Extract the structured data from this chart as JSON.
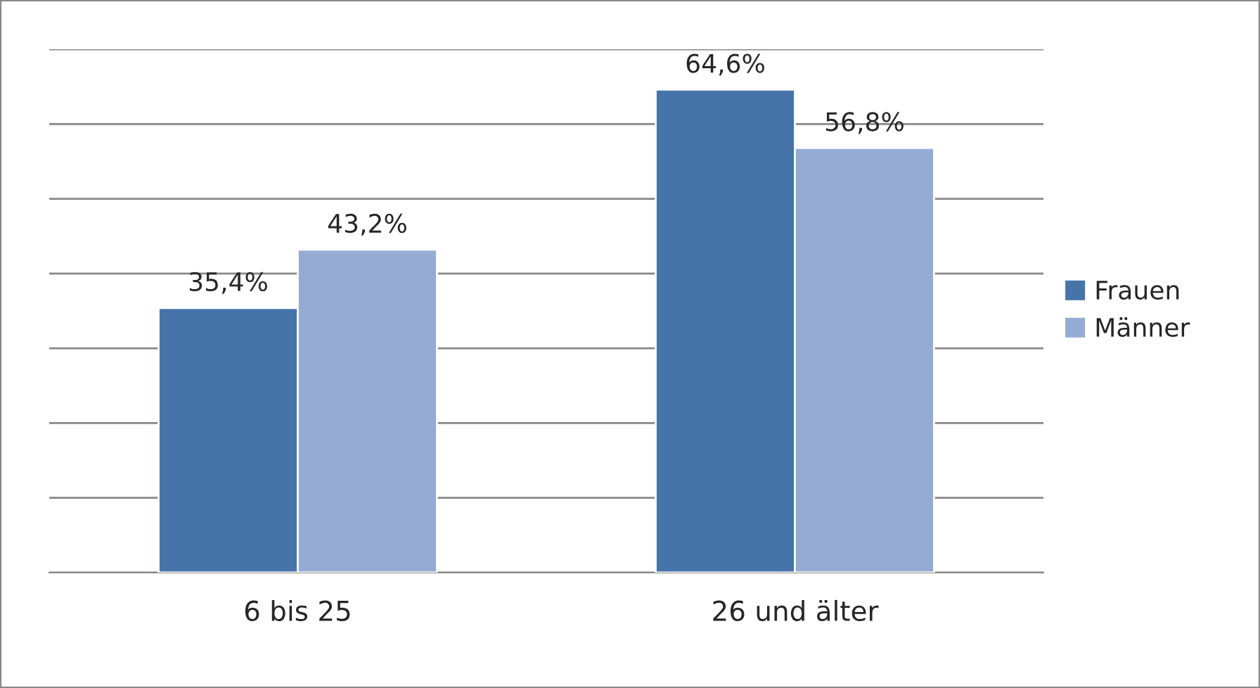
{
  "chart_data": {
    "type": "bar",
    "categories": [
      "6 bis 25",
      "26 und älter"
    ],
    "series": [
      {
        "name": "Frauen",
        "color": "#4674a8",
        "values": [
          35.4,
          64.6
        ],
        "value_labels": [
          "35,4%",
          "64,6%"
        ]
      },
      {
        "name": "Männer",
        "color": "#95abd3",
        "values": [
          43.2,
          56.8
        ],
        "value_labels": [
          "43,2%",
          "56,8%"
        ]
      }
    ],
    "ylim": [
      0,
      70
    ],
    "yticks": [
      {
        "value": 0,
        "label": null
      },
      {
        "value": 10,
        "label": null
      },
      {
        "value": 20,
        "label": null
      },
      {
        "value": 30,
        "label": null
      },
      {
        "value": 40,
        "label": null
      },
      {
        "value": 50,
        "label": null
      },
      {
        "value": 60,
        "label": null
      },
      {
        "value": 70,
        "label": null
      }
    ],
    "tick_labels": "x",
    "grid": "y",
    "legend": "right"
  }
}
